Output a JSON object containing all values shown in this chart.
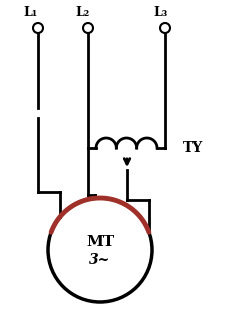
{
  "background": "#ffffff",
  "line_color": "#000000",
  "red_color": "#a0302a",
  "TY_label": "TY",
  "MT_label": "MT",
  "phase_label": "3~",
  "L1_label": "L₁",
  "L2_label": "L₂",
  "L3_label": "L₃",
  "lw": 2.0,
  "fig_w": 2.34,
  "fig_h": 3.18,
  "dpi": 100
}
